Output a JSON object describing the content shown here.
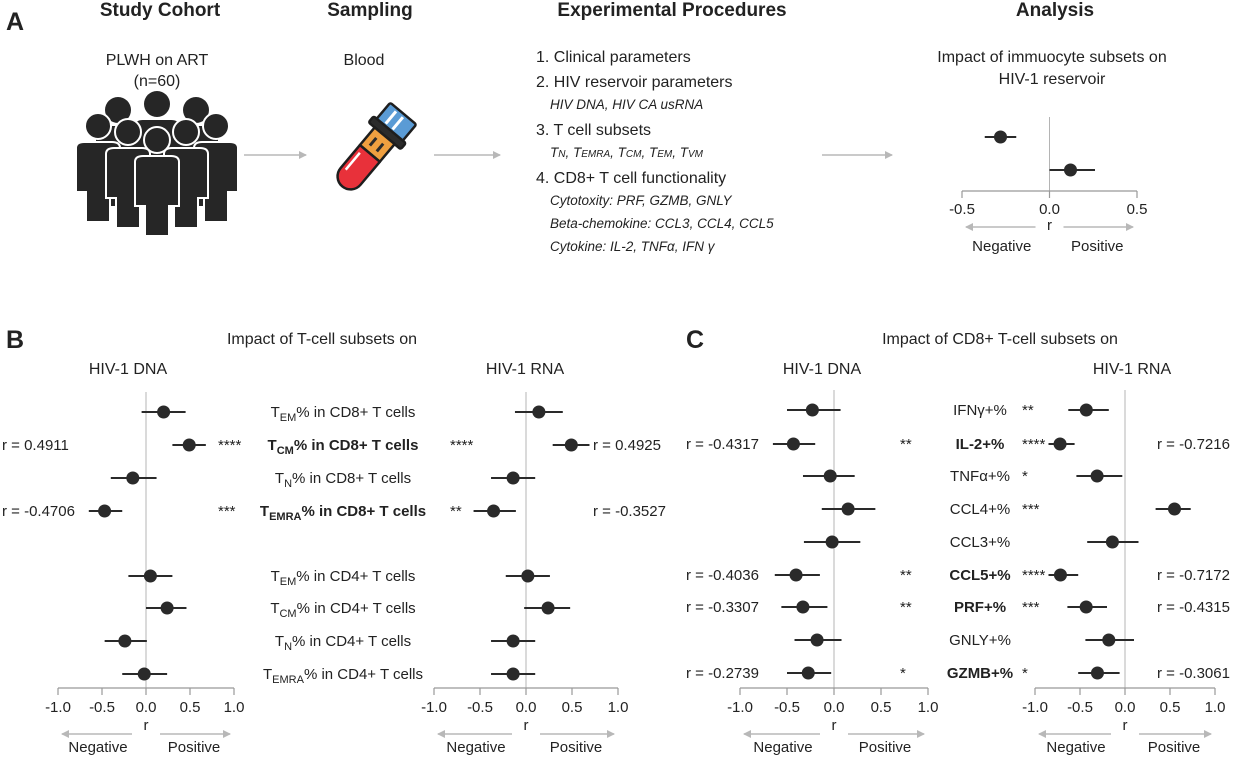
{
  "colors": {
    "text": "#222222",
    "point": "#2a2a2a",
    "axis": "#999999",
    "zero_line": "#b4b4b4",
    "arrow": "#b8b8b8",
    "people": "#262626",
    "tube_cap": "#5a9bd5",
    "tube_body": "#f0a040",
    "tube_blood": "#e8313a"
  },
  "panel_a": {
    "letter": "A",
    "headers": {
      "cohort": "Study Cohort",
      "sampling": "Sampling",
      "procedures": "Experimental Procedures",
      "analysis": "Analysis"
    },
    "cohort": {
      "line1": "PLWH on ART",
      "line2": "(n=60)",
      "icon": "people-group-icon"
    },
    "sampling": {
      "label": "Blood",
      "icon": "blood-tube-icon"
    },
    "procedures": [
      {
        "title": "1. Clinical parameters",
        "details": []
      },
      {
        "title": "2. HIV reservoir parameters",
        "details": [
          "HIV DNA, HIV CA usRNA"
        ]
      },
      {
        "title": "3. T cell subsets",
        "details": []
      },
      {
        "title": "4. CD8+ T cell functionality",
        "details": [
          "Cytotoxity: PRF, GZMB, GNLY",
          "Beta-chemokine: CCL3, CCL4, CCL5",
          "Cytokine: IL-2, TNFα, IFN γ"
        ]
      }
    ],
    "subset_parts": [
      "N",
      "EMRA",
      "CM",
      "EM",
      "VM"
    ],
    "analysis": {
      "title1": "Impact of immuocyte subsets on",
      "title2": "HIV-1 reservoir"
    }
  },
  "panel_b": {
    "letter": "B",
    "title": "Impact of T-cell subsets on",
    "left_header": "HIV-1 DNA",
    "right_header": "HIV-1 RNA"
  },
  "panel_c": {
    "letter": "C",
    "title": "Impact of CD8+ T-cell subsets on",
    "left_header": "HIV-1 DNA",
    "right_header": "HIV-1 RNA"
  },
  "axis_labels": {
    "negative": "Negative",
    "positive": "Positive",
    "r": "r"
  },
  "chart_data": [
    {
      "id": "a_example",
      "type": "scatter",
      "xlabel": "r",
      "xlim": [
        -0.5,
        0.5
      ],
      "xticks": [
        "-0.5",
        "0.0",
        "0.5"
      ],
      "rows": [
        {
          "value": -0.28,
          "ci": [
            -0.37,
            -0.19
          ]
        },
        {
          "value": 0.12,
          "ci": [
            0.0,
            0.26
          ]
        }
      ]
    },
    {
      "id": "b_dna",
      "type": "scatter",
      "xlabel": "r",
      "xlim": [
        -1.0,
        1.0
      ],
      "xticks": [
        "-1.0",
        "-0.5",
        "0.0",
        "0.5",
        "1.0"
      ],
      "rows": [
        {
          "value": 0.2,
          "ci": [
            -0.05,
            0.45
          ]
        },
        {
          "value": 0.4911,
          "ci": [
            0.3,
            0.68
          ],
          "r_text": "r = 0.4911",
          "stars": "****"
        },
        {
          "value": -0.15,
          "ci": [
            -0.4,
            0.12
          ]
        },
        {
          "value": -0.4706,
          "ci": [
            -0.65,
            -0.27
          ],
          "r_text": "r = -0.4706",
          "stars": "***"
        },
        {
          "value": 0.05,
          "ci": [
            -0.2,
            0.3
          ]
        },
        {
          "value": 0.24,
          "ci": [
            0.0,
            0.46
          ]
        },
        {
          "value": -0.24,
          "ci": [
            -0.47,
            0.01
          ]
        },
        {
          "value": -0.02,
          "ci": [
            -0.27,
            0.24
          ]
        }
      ]
    },
    {
      "id": "b_rna",
      "type": "scatter",
      "xlabel": "r",
      "xlim": [
        -1.0,
        1.0
      ],
      "xticks": [
        "-1.0",
        "-0.5",
        "0.0",
        "0.5",
        "1.0"
      ],
      "rows": [
        {
          "value": 0.14,
          "ci": [
            -0.12,
            0.4
          ]
        },
        {
          "value": 0.4925,
          "ci": [
            0.29,
            0.69
          ],
          "r_text": "r = 0.4925",
          "stars": "****"
        },
        {
          "value": -0.14,
          "ci": [
            -0.38,
            0.1
          ]
        },
        {
          "value": -0.3527,
          "ci": [
            -0.57,
            -0.11
          ],
          "r_text": "r = -0.3527",
          "stars": "**"
        },
        {
          "value": 0.02,
          "ci": [
            -0.22,
            0.26
          ]
        },
        {
          "value": 0.24,
          "ci": [
            -0.02,
            0.48
          ]
        },
        {
          "value": -0.14,
          "ci": [
            -0.38,
            0.1
          ]
        },
        {
          "value": -0.14,
          "ci": [
            -0.38,
            0.1
          ]
        }
      ]
    },
    {
      "id": "c_dna",
      "type": "scatter",
      "xlabel": "r",
      "xlim": [
        -1.0,
        1.0
      ],
      "xticks": [
        "-1.0",
        "-0.5",
        "0.0",
        "0.5",
        "1.0"
      ],
      "rows": [
        {
          "value": -0.23,
          "ci": [
            -0.5,
            0.07
          ]
        },
        {
          "value": -0.4317,
          "ci": [
            -0.65,
            -0.2
          ],
          "r_text": "r = -0.4317",
          "stars": "**"
        },
        {
          "value": -0.04,
          "ci": [
            -0.33,
            0.22
          ]
        },
        {
          "value": 0.15,
          "ci": [
            -0.13,
            0.44
          ]
        },
        {
          "value": -0.02,
          "ci": [
            -0.32,
            0.28
          ]
        },
        {
          "value": -0.4036,
          "ci": [
            -0.63,
            -0.15
          ],
          "r_text": "r = -0.4036",
          "stars": "**"
        },
        {
          "value": -0.3307,
          "ci": [
            -0.56,
            -0.07
          ],
          "r_text": "r = -0.3307",
          "stars": "**"
        },
        {
          "value": -0.18,
          "ci": [
            -0.42,
            0.08
          ]
        },
        {
          "value": -0.2739,
          "ci": [
            -0.5,
            -0.03
          ],
          "r_text": "r = -0.2739",
          "stars": "*"
        }
      ]
    },
    {
      "id": "c_rna",
      "type": "scatter",
      "xlabel": "r",
      "xlim": [
        -1.0,
        1.0
      ],
      "xticks": [
        "-1.0",
        "-0.5",
        "0.0",
        "0.5",
        "1.0"
      ],
      "rows": [
        {
          "value": -0.43,
          "ci": [
            -0.63,
            -0.18
          ],
          "stars": "**"
        },
        {
          "value": -0.7216,
          "ci": [
            -0.85,
            -0.56
          ],
          "r_text": "r = -0.7216",
          "stars": "****"
        },
        {
          "value": -0.31,
          "ci": [
            -0.54,
            -0.03
          ],
          "stars": "*"
        },
        {
          "value": 0.55,
          "ci": [
            0.34,
            0.73
          ],
          "stars": "***"
        },
        {
          "value": -0.14,
          "ci": [
            -0.42,
            0.15
          ]
        },
        {
          "value": -0.7172,
          "ci": [
            -0.85,
            -0.52
          ],
          "r_text": "r = -0.7172",
          "stars": "****"
        },
        {
          "value": -0.4315,
          "ci": [
            -0.64,
            -0.2
          ],
          "r_text": "r = -0.4315",
          "stars": "***"
        },
        {
          "value": -0.18,
          "ci": [
            -0.44,
            0.1
          ]
        },
        {
          "value": -0.3061,
          "ci": [
            -0.52,
            -0.06
          ],
          "r_text": "r = -0.3061",
          "stars": "*"
        }
      ]
    }
  ],
  "b_labels": [
    {
      "pre": "T",
      "sub": "EM",
      "post": "% in CD8+ T cells",
      "bold": false
    },
    {
      "pre": "T",
      "sub": "CM",
      "post": "% in CD8+ T cells",
      "bold": true
    },
    {
      "pre": "T",
      "sub": "N",
      "post": "% in CD8+ T cells",
      "bold": false
    },
    {
      "pre": "T",
      "sub": "EMRA",
      "post": "% in CD8+ T cells",
      "bold": true
    },
    {
      "pre": "T",
      "sub": "EM",
      "post": "% in CD4+ T cells",
      "bold": false
    },
    {
      "pre": "T",
      "sub": "CM",
      "post": "% in CD4+ T cells",
      "bold": false
    },
    {
      "pre": "T",
      "sub": "N",
      "post": "% in CD4+ T cells",
      "bold": false
    },
    {
      "pre": "T",
      "sub": "EMRA",
      "post": "% in CD4+ T cells",
      "bold": false
    }
  ],
  "c_labels": [
    {
      "text": "IFNγ+%",
      "bold": false
    },
    {
      "text": "IL-2+%",
      "bold": true
    },
    {
      "text": "TNFα+%",
      "bold": false
    },
    {
      "text": "CCL4+%",
      "bold": false
    },
    {
      "text": "CCL3+%",
      "bold": false
    },
    {
      "text": "CCL5+%",
      "bold": true
    },
    {
      "text": "PRF+%",
      "bold": true
    },
    {
      "text": "GNLY+%",
      "bold": false
    },
    {
      "text": "GZMB+%",
      "bold": true
    }
  ]
}
